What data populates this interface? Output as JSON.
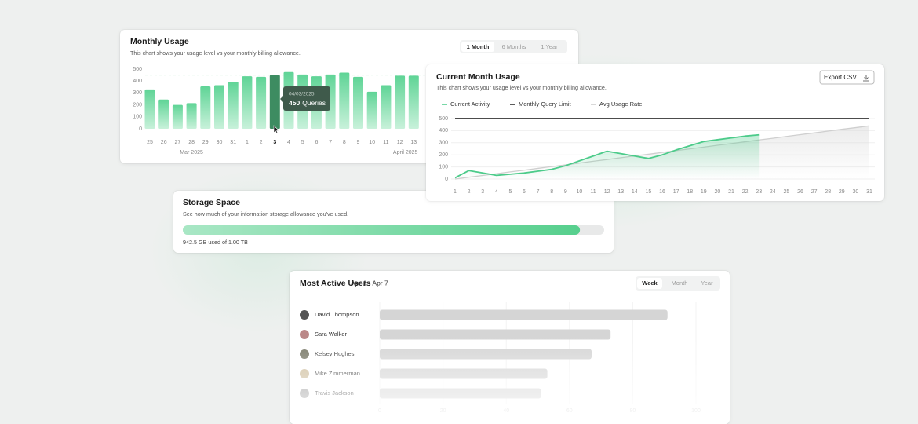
{
  "chart_data": [
    {
      "type": "bar",
      "title": "Monthly Usage",
      "subtitle": "This chart shows your usage level vs your monthly billing allowance.",
      "tabs": [
        "1 Month",
        "6 Months",
        "1 Year"
      ],
      "categories": [
        "25",
        "26",
        "27",
        "28",
        "29",
        "30",
        "31",
        "1",
        "2",
        "3",
        "4",
        "5",
        "6",
        "7",
        "8",
        "9",
        "10",
        "11",
        "12",
        "13"
      ],
      "period_labels": [
        "Mar 2025",
        "April 2025"
      ],
      "values": [
        330,
        245,
        200,
        215,
        355,
        365,
        395,
        440,
        435,
        450,
        475,
        455,
        440,
        455,
        470,
        435,
        310,
        365,
        445,
        445
      ],
      "color": "#62d497",
      "highlight_color": "#3d8c61",
      "highlight_index": 9,
      "ylim": [
        0,
        500
      ],
      "yticks": [
        0,
        100,
        200,
        300,
        400,
        500
      ],
      "reference_line": 450,
      "tooltip": {
        "title": "04/03/2025",
        "value": 450,
        "unit": "Queries"
      }
    },
    {
      "type": "line",
      "title": "Current Month Usage",
      "subtitle": "This chart shows your usage level vs your monthly billing allowance.",
      "button": "Export CSV",
      "x": [
        1,
        2,
        3,
        4,
        5,
        6,
        7,
        8,
        9,
        10,
        11,
        12,
        13,
        14,
        15,
        16,
        17,
        18,
        19,
        20,
        21,
        22,
        23,
        24,
        25,
        26,
        27,
        28,
        29,
        30,
        31
      ],
      "xlim": [
        1,
        31
      ],
      "ylim": [
        0,
        500
      ],
      "yticks": [
        0,
        100,
        200,
        300,
        400,
        500
      ],
      "grid": true,
      "series": [
        {
          "name": "Current Activity",
          "color": "#4ccb8a",
          "values": [
            10,
            70,
            50,
            30,
            40,
            50,
            65,
            80,
            110,
            150,
            190,
            230,
            210,
            190,
            170,
            200,
            240,
            275,
            310,
            325,
            340,
            355,
            365,
            null,
            null,
            null,
            null,
            null,
            null,
            null,
            null
          ]
        },
        {
          "name": "Monthly Query Limit",
          "color": "#333333",
          "values": [
            500,
            500,
            500,
            500,
            500,
            500,
            500,
            500,
            500,
            500,
            500,
            500,
            500,
            500,
            500,
            500,
            500,
            500,
            500,
            500,
            500,
            500,
            500,
            500,
            500,
            500,
            500,
            500,
            500,
            500,
            500
          ]
        },
        {
          "name": "Avg Usage Rate",
          "color": "#cfcfcf",
          "values": [
            0,
            15,
            29,
            44,
            59,
            73,
            88,
            103,
            117,
            132,
            147,
            161,
            176,
            191,
            205,
            220,
            235,
            249,
            264,
            279,
            293,
            308,
            323,
            337,
            352,
            367,
            381,
            396,
            411,
            425,
            440
          ]
        }
      ]
    },
    {
      "type": "progress",
      "title": "Storage Space",
      "subtitle": "See how much of your information storage allowance you've used.",
      "values": [
        942.5
      ],
      "value_labels": [
        "942.5 GB used of 1.00 TB"
      ],
      "xlim": [
        0,
        1000
      ],
      "color": "#5fd193"
    },
    {
      "type": "hbar",
      "title": "Most Active Users",
      "subtitle": "Apr 1 - Apr 7",
      "tabs": [
        "Week",
        "Month",
        "Year"
      ],
      "categories": [
        "David Thompson",
        "Sara Walker",
        "Kelsey Hughes",
        "Mike Zimmerman",
        "Travis Jackson"
      ],
      "values": [
        91,
        73,
        67,
        53,
        51
      ],
      "color": "#d5d5d5",
      "xlim": [
        0,
        100
      ],
      "xticks": [
        0,
        20,
        40,
        60,
        80,
        100
      ],
      "grid": true
    }
  ]
}
